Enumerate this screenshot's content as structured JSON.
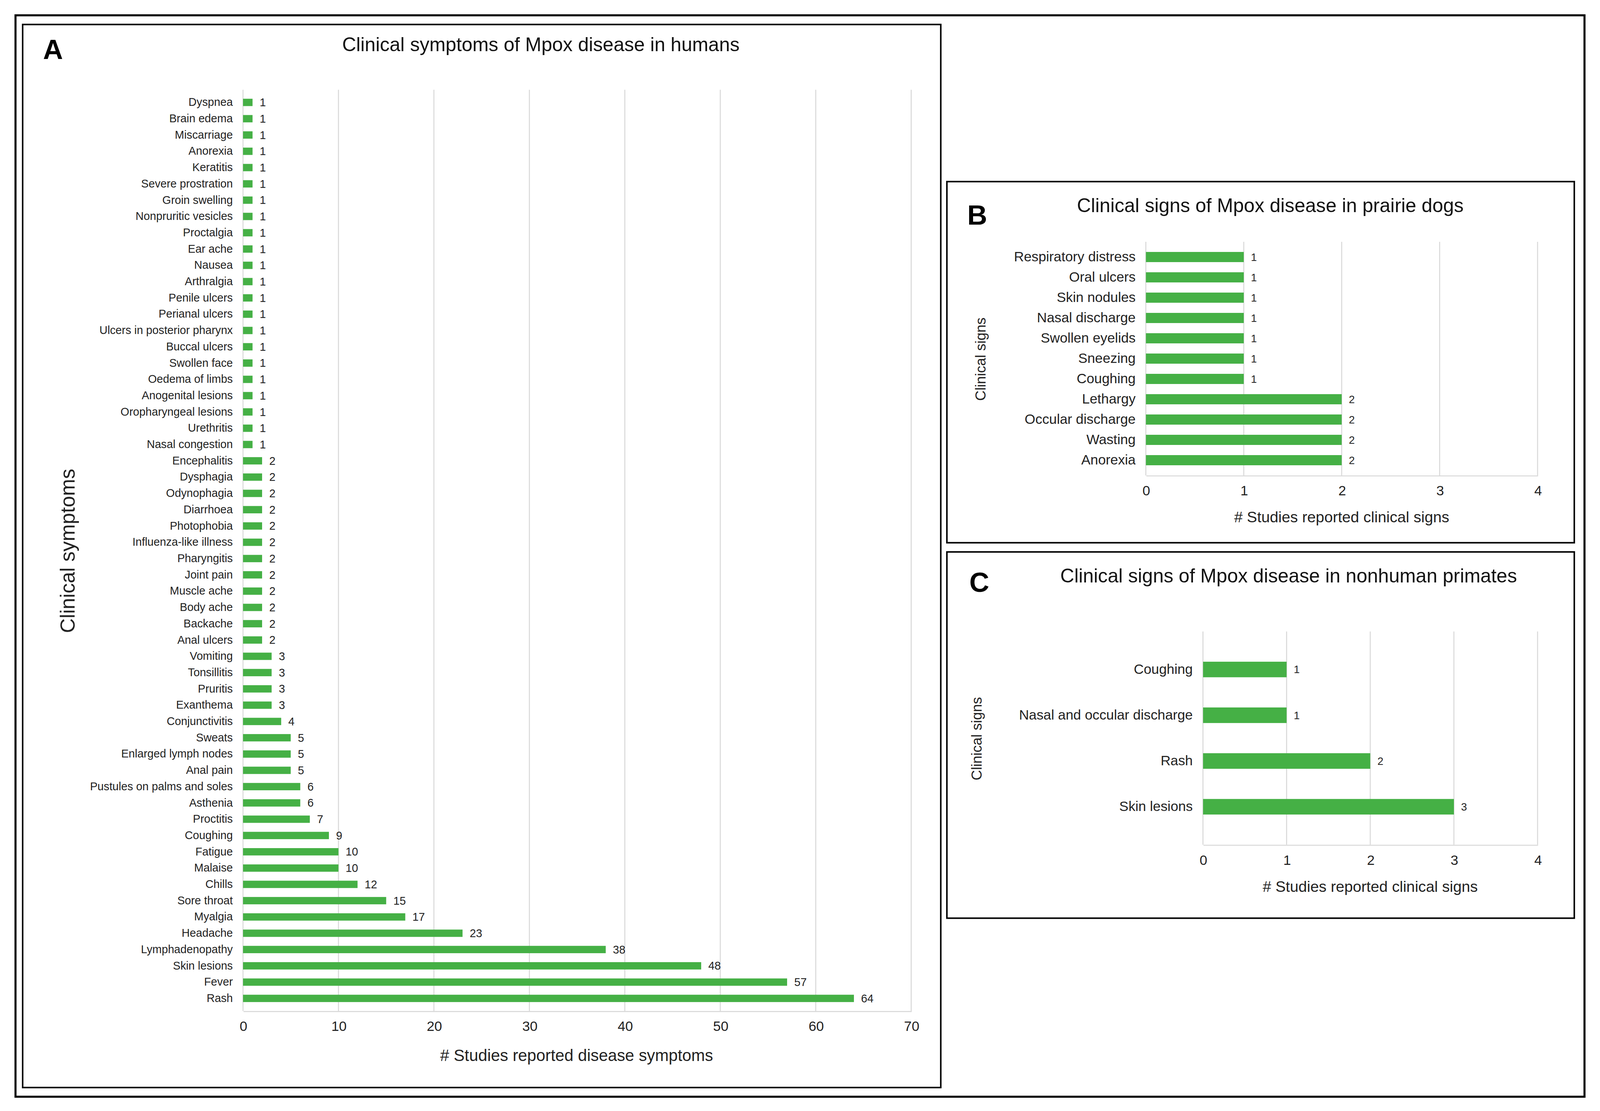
{
  "chart_data": [
    {
      "type": "bar",
      "panel": "A",
      "title": "Clinical symptoms of Mpox disease in humans",
      "orientation": "horizontal",
      "categories": [
        "Dyspnea",
        "Brain edema",
        "Miscarriage",
        "Anorexia",
        "Keratitis",
        "Severe prostration",
        "Groin swelling",
        "Nonpruritic vesicles",
        "Proctalgia",
        "Ear ache",
        "Nausea",
        "Arthralgia",
        "Penile ulcers",
        "Perianal ulcers",
        "Ulcers in posterior pharynx",
        "Buccal ulcers",
        "Swollen face",
        "Oedema of limbs",
        "Anogenital lesions",
        "Oropharyngeal lesions",
        "Urethritis",
        "Nasal congestion",
        "Encephalitis",
        "Dysphagia",
        "Odynophagia",
        "Diarrhoea",
        "Photophobia",
        "Influenza-like illness",
        "Pharyngitis",
        "Joint pain",
        "Muscle ache",
        "Body ache",
        "Backache",
        "Anal ulcers",
        "Vomiting",
        "Tonsillitis",
        "Pruritis",
        "Exanthema",
        "Conjunctivitis",
        "Sweats",
        "Enlarged lymph nodes",
        "Anal pain",
        "Pustules on palms and soles",
        "Asthenia",
        "Proctitis",
        "Coughing",
        "Fatigue",
        "Malaise",
        "Chills",
        "Sore throat",
        "Myalgia",
        "Headache",
        "Lymphadenopathy",
        "Skin lesions",
        "Fever",
        "Rash"
      ],
      "values": [
        1,
        1,
        1,
        1,
        1,
        1,
        1,
        1,
        1,
        1,
        1,
        1,
        1,
        1,
        1,
        1,
        1,
        1,
        1,
        1,
        1,
        1,
        2,
        2,
        2,
        2,
        2,
        2,
        2,
        2,
        2,
        2,
        2,
        2,
        3,
        3,
        3,
        3,
        4,
        5,
        5,
        5,
        6,
        6,
        7,
        9,
        10,
        10,
        12,
        15,
        17,
        23,
        38,
        48,
        57,
        64
      ],
      "color": "#45b045",
      "xlim": [
        0,
        70
      ],
      "xticks": [
        0,
        10,
        20,
        30,
        40,
        50,
        60,
        70
      ],
      "x_label": "# Studies reported disease symptoms",
      "y_label": "Clinical symptoms",
      "grid": true,
      "data_labels": true
    },
    {
      "type": "bar",
      "panel": "B",
      "title": "Clinical signs of Mpox disease in prairie dogs",
      "orientation": "horizontal",
      "categories": [
        "Respiratory distress",
        "Oral ulcers",
        "Skin nodules",
        "Nasal discharge",
        "Swollen eyelids",
        "Sneezing",
        "Coughing",
        "Lethargy",
        "Occular discharge",
        "Wasting",
        "Anorexia"
      ],
      "values": [
        1,
        1,
        1,
        1,
        1,
        1,
        1,
        2,
        2,
        2,
        2
      ],
      "color": "#45b045",
      "xlim": [
        0,
        4
      ],
      "xticks": [
        0,
        1,
        2,
        3,
        4
      ],
      "x_label": "# Studies reported clinical signs",
      "y_label": "Clinical signs",
      "grid": true,
      "data_labels": true
    },
    {
      "type": "bar",
      "panel": "C",
      "title": "Clinical signs of Mpox disease in nonhuman primates",
      "orientation": "horizontal",
      "categories": [
        "Coughing",
        "Nasal and occular discharge",
        "Rash",
        "Skin lesions"
      ],
      "values": [
        1,
        1,
        2,
        3
      ],
      "color": "#45b045",
      "xlim": [
        0,
        4
      ],
      "xticks": [
        0,
        1,
        2,
        3,
        4
      ],
      "x_label": "# Studies reported clinical signs",
      "y_label": "Clinical signs",
      "grid": true,
      "data_labels": true
    }
  ]
}
